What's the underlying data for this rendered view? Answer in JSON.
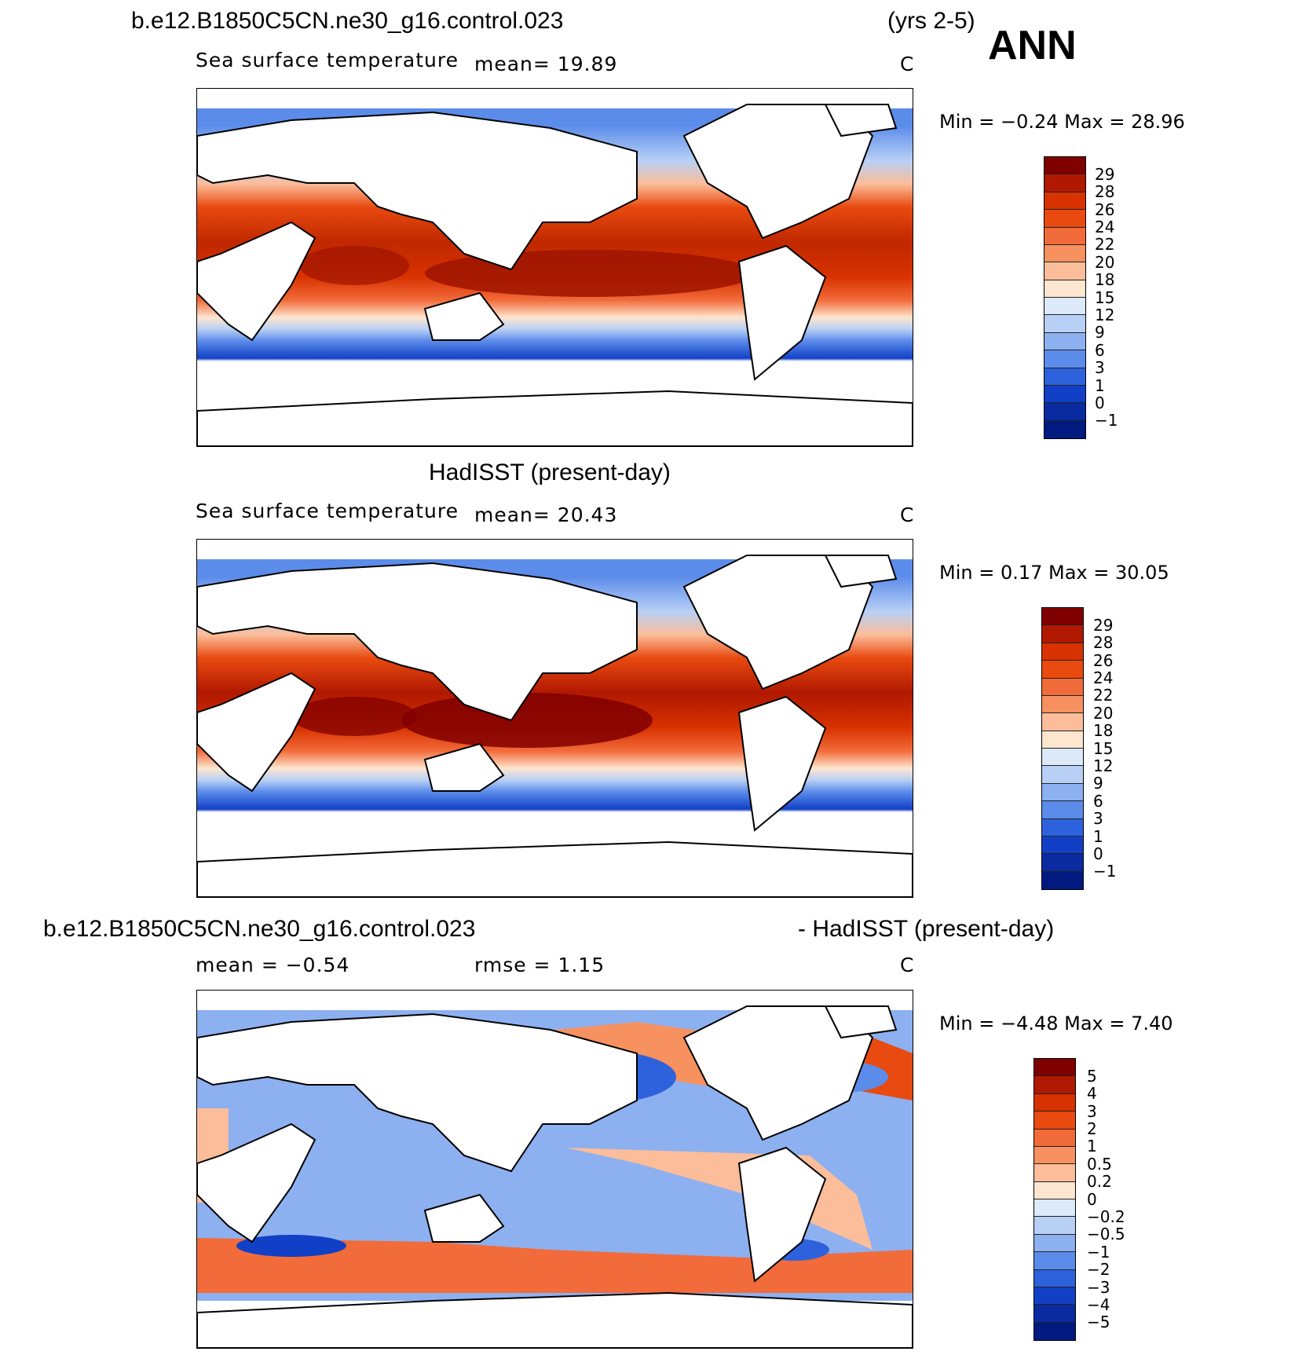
{
  "top_title": {
    "case": "b.e12.B1850C5CN.ne30_g16.control.023",
    "years": "(yrs 2-5)",
    "season": "ANN"
  },
  "panels": [
    {
      "subtitle": "Sea surface temperature",
      "mean_text": "mean=  19.89",
      "units": "C",
      "stats": "Min =   −0.24 Max =   28.96"
    },
    {
      "title": "HadISST (present-day)",
      "subtitle": "Sea surface temperature",
      "mean_text": "mean=  20.43",
      "units": "C",
      "stats": "Min =    0.17 Max =   30.05"
    },
    {
      "title_left": "b.e12.B1850C5CN.ne30_g16.control.023",
      "title_right": "- HadISST (present-day)",
      "mean_text": "mean =   −0.54",
      "rmse_text": "rmse =    1.15",
      "units": "C",
      "stats": "Min =   −4.48 Max =    7.40"
    }
  ],
  "colorbars": {
    "sst_levels": [
      "29",
      "28",
      "26",
      "24",
      "22",
      "20",
      "18",
      "15",
      "12",
      "9",
      "6",
      "3",
      "1",
      "0",
      "−1"
    ],
    "sst_colors": [
      "#800000",
      "#b01800",
      "#d83200",
      "#e84a10",
      "#f26b3a",
      "#f7915f",
      "#fbbd9a",
      "#fde6d0",
      "#dce9f8",
      "#b8d0f5",
      "#8db0f0",
      "#5c8cea",
      "#2e62dc",
      "#1140c6",
      "#0a2aa0",
      "#001a80"
    ],
    "diff_levels": [
      "5",
      "4",
      "3",
      "2",
      "1",
      "0.5",
      "0.2",
      "0",
      "−0.2",
      "−0.5",
      "−1",
      "−2",
      "−3",
      "−4",
      "−5"
    ],
    "diff_colors": [
      "#800000",
      "#b01800",
      "#d83200",
      "#e84a10",
      "#f26b3a",
      "#f7915f",
      "#fbbd9a",
      "#fde6d0",
      "#dce9f8",
      "#b8d0f5",
      "#8db0f0",
      "#5c8cea",
      "#2e62dc",
      "#1140c6",
      "#0a2aa0",
      "#001a80"
    ]
  }
}
